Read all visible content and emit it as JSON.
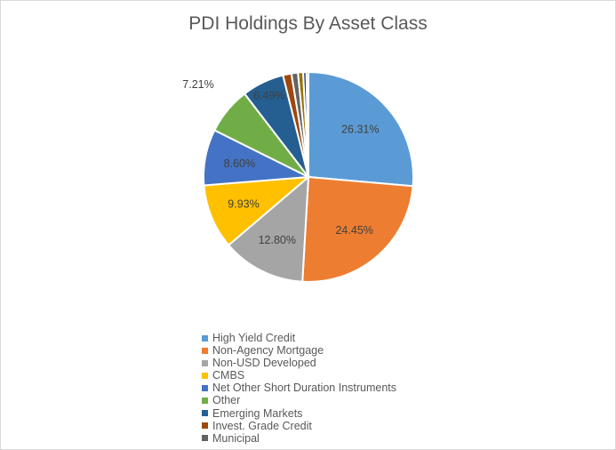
{
  "chart_data": {
    "type": "pie",
    "title": "PDI Holdings By Asset Class",
    "slices": [
      {
        "label": "High Yield Credit",
        "value": 26.31,
        "data_label": "26.31%",
        "color": "#5b9bd5",
        "label_color": "#404040"
      },
      {
        "label": "Non-Agency Mortgage",
        "value": 24.45,
        "data_label": "24.45%",
        "color": "#ed7d31",
        "label_color": "#404040"
      },
      {
        "label": "Non-USD Developed",
        "value": 12.8,
        "data_label": "12.80%",
        "color": "#a5a5a5",
        "label_color": "#404040"
      },
      {
        "label": "CMBS",
        "value": 9.93,
        "data_label": "9.93%",
        "color": "#ffc000",
        "label_color": "#404040"
      },
      {
        "label": "Net Other Short Duration Instruments",
        "value": 8.6,
        "data_label": "8.60%",
        "color": "#4472c4",
        "label_color": "#404040"
      },
      {
        "label": "Other",
        "value": 7.21,
        "data_label": "7.21%",
        "color": "#70ad47",
        "label_color": "#404040"
      },
      {
        "label": "Emerging Markets",
        "value": 6.49,
        "data_label": "6.49%",
        "color": "#255e91",
        "label_color": "#404040"
      },
      {
        "label": "Invest. Grade Credit",
        "value": 1.3,
        "data_label": "",
        "color": "#9e480e",
        "label_color": "#404040"
      },
      {
        "label": "Municipal",
        "value": 1.0,
        "data_label": "",
        "color": "#636363",
        "label_color": "#404040"
      },
      {
        "label": "",
        "value": 0.8,
        "data_label": "",
        "color": "#997300",
        "label_color": "#404040"
      },
      {
        "label": "",
        "value": 0.5,
        "data_label": "",
        "color": "#264478",
        "label_color": "#404040"
      },
      {
        "label": "",
        "value": 0.3,
        "data_label": "",
        "color": "#43682b",
        "label_color": "#404040"
      }
    ],
    "legend_position": "bottom",
    "legend_entries": [
      "High Yield Credit",
      "Non-Agency Mortgage",
      "Non-USD Developed",
      "CMBS",
      "Net Other Short Duration Instruments",
      "Other",
      "Emerging Markets",
      "Invest. Grade Credit",
      "Municipal"
    ]
  }
}
